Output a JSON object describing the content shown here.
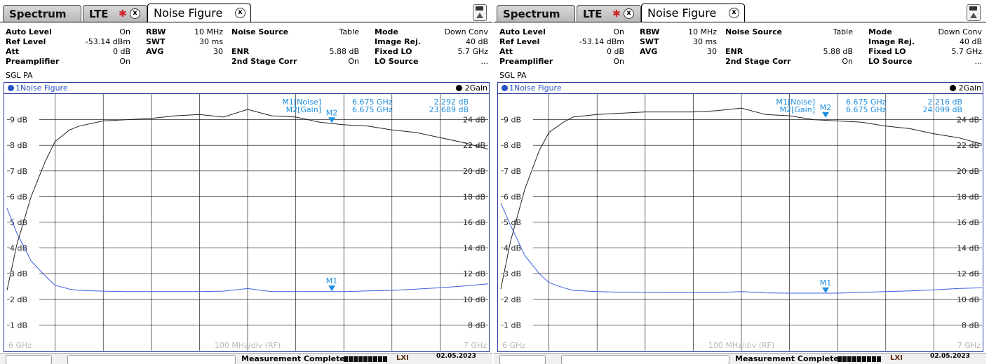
{
  "panels": [
    {
      "tabs": {
        "spectrum": "Spectrum",
        "lte": "LTE",
        "noise_figure": "Noise Figure"
      },
      "settings": {
        "auto_level_label": "Auto Level",
        "auto_level_value": "On",
        "ref_level_label": "Ref Level",
        "ref_level_value": "-53.14 dBm",
        "att_label": "Att",
        "att_value": "0 dB",
        "preamp_label": "Preamplifier",
        "preamp_value": "On",
        "rbw_label": "RBW",
        "rbw_value": "10 MHz",
        "swt_label": "SWT",
        "swt_value": "30 ms",
        "avg_label": "AVG",
        "avg_value": "30",
        "noise_source_label": "Noise Source",
        "noise_source_value": "Table",
        "enr_label": "ENR",
        "enr_value": "5.88 dB",
        "stage_corr_label": "2nd Stage Corr",
        "stage_corr_value": "On",
        "mode_label": "Mode",
        "mode_value": "Down Conv",
        "image_rej_label": "Image Rej.",
        "image_rej_value": "40 dB",
        "fixed_lo_label": "Fixed LO",
        "fixed_lo_value": "5.7 GHz",
        "lo_source_label": "LO Source",
        "lo_source_value": "...",
        "sgl": "SGL  PA"
      },
      "graph": {
        "trace1_label": "1Noise Figure",
        "trace2_label": "2Gain",
        "x_start": "6 GHz",
        "x_div": "100 MHz/div (RF)",
        "x_stop": "7 GHz"
      },
      "markers": {
        "m1_label": "M1[Noise]",
        "m1_freq": "6.675 GHz",
        "m1_value": "2.292 dB",
        "m2_label": "M2[Gain]",
        "m2_freq": "6.675 GHz",
        "m2_value": "23.689 dB"
      },
      "status": {
        "text": "Measurement Complete",
        "date": "02.05.2023",
        "lxi": "LXI"
      }
    },
    {
      "tabs": {
        "spectrum": "Spectrum",
        "lte": "LTE",
        "noise_figure": "Noise Figure"
      },
      "settings": {
        "auto_level_label": "Auto Level",
        "auto_level_value": "On",
        "ref_level_label": "Ref Level",
        "ref_level_value": "-53.14 dBm",
        "att_label": "Att",
        "att_value": "0 dB",
        "preamp_label": "Preamplifier",
        "preamp_value": "On",
        "rbw_label": "RBW",
        "rbw_value": "10 MHz",
        "swt_label": "SWT",
        "swt_value": "30 ms",
        "avg_label": "AVG",
        "avg_value": "30",
        "noise_source_label": "Noise Source",
        "noise_source_value": "Table",
        "enr_label": "ENR",
        "enr_value": "5.88 dB",
        "stage_corr_label": "2nd Stage Corr",
        "stage_corr_value": "On",
        "mode_label": "Mode",
        "mode_value": "Down Conv",
        "image_rej_label": "Image Rej.",
        "image_rej_value": "40 dB",
        "fixed_lo_label": "Fixed LO",
        "fixed_lo_value": "5.7 GHz",
        "lo_source_label": "LO Source",
        "lo_source_value": "...",
        "sgl": "SGL  PA"
      },
      "graph": {
        "trace1_label": "1Noise Figure",
        "trace2_label": "2Gain",
        "x_start": "6 GHz",
        "x_div": "100 MHz/div (RF)",
        "x_stop": "7 GHz"
      },
      "markers": {
        "m1_label": "M1[Noise]",
        "m1_freq": "6.675 GHz",
        "m1_value": "2.216 dB",
        "m2_label": "M2[Gain]",
        "m2_freq": "6.675 GHz",
        "m2_value": "24.099 dB"
      },
      "status": {
        "text": "Measurement Complete",
        "date": "02.05.2023",
        "lxi": "LXI"
      }
    }
  ],
  "colors": {
    "noise_trace": "#3a5fe0",
    "gain_trace": "#222222",
    "marker": "#1e8fe0",
    "grid": "#000000",
    "axis_text": "#b8b8b8"
  },
  "chart_data": [
    {
      "type": "line",
      "x": [
        6.0,
        6.02,
        6.05,
        6.08,
        6.1,
        6.13,
        6.15,
        6.2,
        6.25,
        6.3,
        6.35,
        6.4,
        6.45,
        6.5,
        6.55,
        6.6,
        6.65,
        6.7,
        6.75,
        6.8,
        6.85,
        6.9,
        6.95,
        7.0
      ],
      "series": [
        {
          "name": "1Noise Figure",
          "axis": "left",
          "values": [
            5.55,
            4.6,
            3.5,
            2.9,
            2.55,
            2.4,
            2.35,
            2.32,
            2.3,
            2.3,
            2.3,
            2.3,
            2.32,
            2.42,
            2.3,
            2.3,
            2.3,
            2.3,
            2.33,
            2.35,
            2.4,
            2.45,
            2.52,
            2.6
          ]
        },
        {
          "name": "2Gain",
          "axis": "right",
          "values": [
            10.7,
            14.2,
            18.0,
            20.8,
            22.3,
            23.2,
            23.5,
            23.9,
            24.0,
            24.1,
            24.3,
            24.4,
            24.2,
            24.8,
            24.3,
            24.2,
            23.8,
            23.6,
            23.5,
            23.2,
            23.0,
            22.6,
            22.2,
            21.7
          ]
        }
      ],
      "markers": [
        {
          "name": "M1",
          "trace": "1Noise Figure",
          "x": 6.675,
          "value": 2.292
        },
        {
          "name": "M2",
          "trace": "2Gain",
          "x": 6.675,
          "value": 23.689
        }
      ],
      "xlim": [
        6.0,
        7.0
      ],
      "ylim_left": [
        0,
        10
      ],
      "ylim_right": [
        6,
        26
      ],
      "y_ticks_left": [
        "9 dB",
        "8 dB",
        "7 dB",
        "6 dB",
        "5 dB",
        "4 dB",
        "3 dB",
        "2 dB",
        "1 dB"
      ],
      "y_ticks_right": [
        "24 dB",
        "22 dB",
        "20 dB",
        "18 dB",
        "16 dB",
        "14 dB",
        "12 dB",
        "10 dB",
        "8 dB"
      ],
      "grid": true
    },
    {
      "type": "line",
      "x": [
        6.0,
        6.02,
        6.05,
        6.08,
        6.1,
        6.13,
        6.15,
        6.2,
        6.25,
        6.3,
        6.35,
        6.4,
        6.45,
        6.5,
        6.55,
        6.6,
        6.65,
        6.7,
        6.75,
        6.8,
        6.85,
        6.9,
        6.95,
        7.0
      ],
      "series": [
        {
          "name": "1Noise Figure",
          "axis": "left",
          "values": [
            5.75,
            4.9,
            3.7,
            3.0,
            2.65,
            2.45,
            2.35,
            2.3,
            2.28,
            2.27,
            2.26,
            2.26,
            2.26,
            2.3,
            2.25,
            2.24,
            2.24,
            2.24,
            2.27,
            2.3,
            2.33,
            2.37,
            2.42,
            2.45
          ]
        },
        {
          "name": "2Gain",
          "axis": "right",
          "values": [
            10.8,
            14.5,
            18.6,
            21.6,
            23.0,
            23.8,
            24.2,
            24.4,
            24.5,
            24.6,
            24.6,
            24.6,
            24.7,
            24.9,
            24.4,
            24.3,
            24.0,
            23.9,
            23.8,
            23.5,
            23.3,
            22.9,
            22.6,
            22.1
          ]
        }
      ],
      "markers": [
        {
          "name": "M1",
          "trace": "1Noise Figure",
          "x": 6.675,
          "value": 2.216
        },
        {
          "name": "M2",
          "trace": "2Gain",
          "x": 6.675,
          "value": 24.099
        }
      ],
      "xlim": [
        6.0,
        7.0
      ],
      "ylim_left": [
        0,
        10
      ],
      "ylim_right": [
        6,
        26
      ],
      "y_ticks_left": [
        "9 dB",
        "8 dB",
        "7 dB",
        "6 dB",
        "5 dB",
        "4 dB",
        "3 dB",
        "2 dB",
        "1 dB"
      ],
      "y_ticks_right": [
        "24 dB",
        "22 dB",
        "20 dB",
        "18 dB",
        "16 dB",
        "14 dB",
        "12 dB",
        "10 dB",
        "8 dB"
      ],
      "grid": true
    }
  ]
}
